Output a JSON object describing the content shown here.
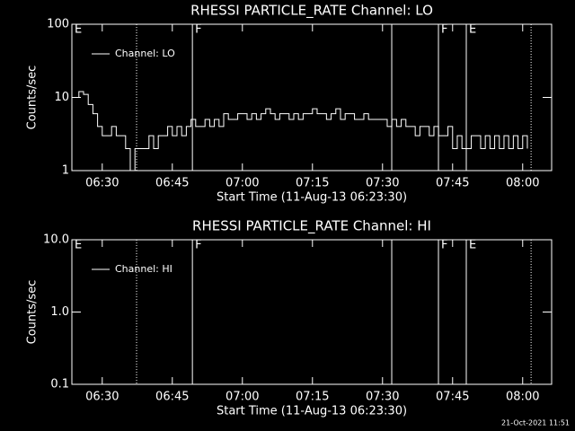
{
  "footer": "21-Oct-2021 11:51",
  "chart_data": [
    {
      "type": "line",
      "title": "RHESSI PARTICLE_RATE Channel: LO",
      "xlabel": "Start Time (11-Aug-13 06:23:30)",
      "ylabel": "Counts/sec",
      "log_y": true,
      "legend": "upper left",
      "xlim": [
        383.5,
        486.2
      ],
      "ylim": [
        1,
        100
      ],
      "xticks": [
        {
          "value": 390,
          "label": "06:30"
        },
        {
          "value": 405,
          "label": "06:45"
        },
        {
          "value": 420,
          "label": "07:00"
        },
        {
          "value": 435,
          "label": "07:15"
        },
        {
          "value": 450,
          "label": "07:30"
        },
        {
          "value": 465,
          "label": "07:45"
        },
        {
          "value": 480,
          "label": "08:00"
        }
      ],
      "yticks": [
        1,
        10,
        100
      ],
      "markers": [
        {
          "x": 383.5,
          "label": "E",
          "style": "none"
        },
        {
          "x": 397.35,
          "style": "dotted"
        },
        {
          "x": 409.3,
          "label": "F",
          "style": "solid"
        },
        {
          "x": 451.97,
          "style": "solid"
        },
        {
          "x": 461.97,
          "label": "F",
          "style": "solid"
        },
        {
          "x": 467.93,
          "label": "E",
          "style": "solid"
        },
        {
          "x": 481.8,
          "style": "dotted"
        }
      ],
      "series": [
        {
          "name": "Channel: LO",
          "color": "#ffffff",
          "x": [
            384,
            385,
            386,
            387,
            388,
            389,
            390,
            391,
            392,
            393,
            394,
            395,
            396,
            397,
            398,
            399,
            400,
            401,
            402,
            403,
            404,
            405,
            406,
            407,
            408,
            409,
            410,
            411,
            412,
            413,
            414,
            415,
            416,
            417,
            418,
            419,
            420,
            421,
            422,
            423,
            424,
            425,
            426,
            427,
            428,
            429,
            430,
            431,
            432,
            433,
            434,
            435,
            436,
            437,
            438,
            439,
            440,
            441,
            442,
            443,
            444,
            445,
            446,
            447,
            448,
            449,
            450,
            451,
            452,
            453,
            454,
            455,
            456,
            457,
            458,
            459,
            460,
            461,
            462,
            463,
            464,
            465,
            466,
            467,
            468,
            469,
            470,
            471,
            472,
            473,
            474,
            475,
            476,
            477,
            478,
            479,
            480,
            481
          ],
          "values": [
            10,
            12,
            11,
            8,
            6,
            4,
            3,
            3,
            4,
            3,
            3,
            2,
            1,
            2,
            2,
            2,
            3,
            2,
            3,
            3,
            4,
            3,
            4,
            3,
            4,
            5,
            4,
            4,
            5,
            4,
            5,
            4,
            6,
            5,
            5,
            6,
            6,
            5,
            6,
            5,
            6,
            7,
            6,
            5,
            6,
            6,
            5,
            6,
            5,
            6,
            6,
            7,
            6,
            6,
            5,
            6,
            7,
            5,
            6,
            6,
            5,
            5,
            6,
            5,
            5,
            5,
            5,
            4,
            5,
            4,
            5,
            4,
            4,
            3,
            4,
            4,
            3,
            4,
            3,
            3,
            4,
            2,
            3,
            2,
            2,
            3,
            3,
            2,
            3,
            2,
            3,
            2,
            3,
            2,
            3,
            2,
            3,
            2
          ]
        }
      ]
    },
    {
      "type": "line",
      "title": "RHESSI PARTICLE_RATE Channel: HI",
      "xlabel": "Start Time (11-Aug-13 06:23:30)",
      "ylabel": "Counts/sec",
      "log_y": true,
      "legend": "upper left",
      "xlim": [
        383.5,
        486.2
      ],
      "ylim": [
        0.1,
        10
      ],
      "xticks": [
        {
          "value": 390,
          "label": "06:30"
        },
        {
          "value": 405,
          "label": "06:45"
        },
        {
          "value": 420,
          "label": "07:00"
        },
        {
          "value": 435,
          "label": "07:15"
        },
        {
          "value": 450,
          "label": "07:30"
        },
        {
          "value": 465,
          "label": "07:45"
        },
        {
          "value": 480,
          "label": "08:00"
        }
      ],
      "yticks": [
        0.1,
        {
          "value": 1,
          "label": "1.0"
        },
        {
          "value": 10,
          "label": "10.0"
        }
      ],
      "markers": [
        {
          "x": 383.5,
          "label": "E",
          "style": "none"
        },
        {
          "x": 397.35,
          "style": "dotted"
        },
        {
          "x": 409.3,
          "label": "F",
          "style": "solid"
        },
        {
          "x": 451.97,
          "style": "solid"
        },
        {
          "x": 461.97,
          "label": "F",
          "style": "solid"
        },
        {
          "x": 467.93,
          "label": "E",
          "style": "solid"
        },
        {
          "x": 481.8,
          "style": "dotted"
        }
      ],
      "series": [
        {
          "name": "Channel: HI",
          "color": "#ffffff",
          "x": [],
          "values": []
        }
      ]
    }
  ]
}
